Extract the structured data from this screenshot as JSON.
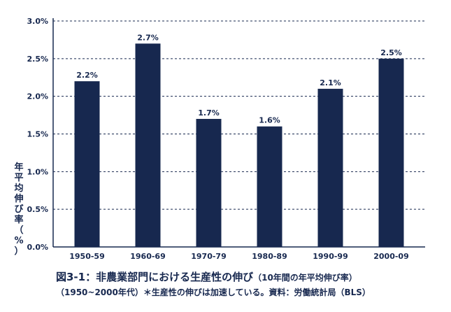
{
  "chart_data": {
    "type": "bar",
    "categories": [
      "1950-59",
      "1960-69",
      "1970-79",
      "1980-89",
      "1990-99",
      "2000-09"
    ],
    "values": [
      2.2,
      2.7,
      1.7,
      1.6,
      2.1,
      2.5
    ],
    "data_labels": [
      "2.2%",
      "2.7%",
      "1.7%",
      "1.6%",
      "2.1%",
      "2.5%"
    ],
    "ylim": [
      0,
      3.0
    ],
    "yticks": [
      0,
      0.5,
      1.0,
      1.5,
      2.0,
      2.5,
      3.0
    ],
    "ytick_labels": [
      "0.0%",
      "0.5%",
      "1.0%",
      "1.5%",
      "2.0%",
      "2.5%",
      "3.0%"
    ],
    "ylabel_chars": [
      "年",
      "平",
      "均",
      "伸",
      "び",
      "率",
      "（",
      "%",
      "）"
    ],
    "grid": "horizontal dashed",
    "colors": {
      "bar": "#17284f",
      "text": "#17284f",
      "grid": "#17284f"
    }
  },
  "caption": {
    "title": "図3-1：非農業部門における生産性の伸び",
    "title_note": "（10年間の年平均伸び率）",
    "line2": "（1950~2000年代）＊生産性の伸びは加速している。資料：労働統計局（BLS）"
  }
}
